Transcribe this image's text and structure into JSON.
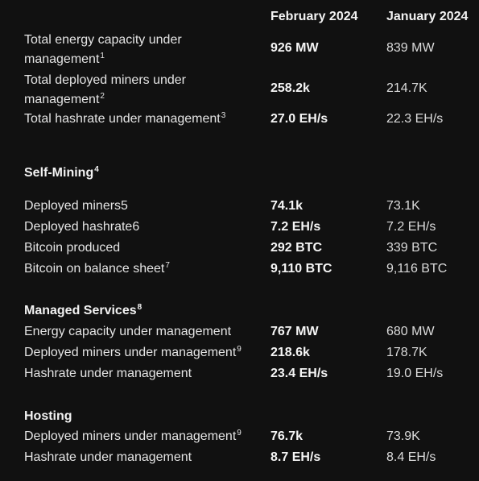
{
  "columns": {
    "feb": "February 2024",
    "jan": "January 2024"
  },
  "summary": [
    {
      "label": "Total energy capacity under management",
      "sup": "1",
      "feb": "926 MW",
      "jan": "839 MW"
    },
    {
      "label": "Total deployed miners under management",
      "sup": "2",
      "feb": "258.2k",
      "jan": "214.7K"
    },
    {
      "label": "Total hashrate under management",
      "sup": "3",
      "feb": "27.0 EH/s",
      "jan": "22.3 EH/s"
    }
  ],
  "self_mining": {
    "title": "Self-Mining",
    "sup": "4",
    "rows": [
      {
        "label": "Deployed miners5",
        "sup": "",
        "feb": "74.1k",
        "jan": "73.1K"
      },
      {
        "label": "Deployed hashrate6",
        "sup": "",
        "feb": "7.2 EH/s",
        "jan": "7.2 EH/s"
      },
      {
        "label": "Bitcoin produced",
        "sup": "",
        "feb": "292 BTC",
        "jan": "339 BTC"
      },
      {
        "label": "Bitcoin on balance sheet",
        "sup": "7",
        "feb": "9,110 BTC",
        "jan": "9,116 BTC"
      }
    ]
  },
  "managed_services": {
    "title": "Managed Services",
    "sup": "8",
    "rows": [
      {
        "label": "Energy capacity under management",
        "sup": "",
        "feb": "767 MW",
        "jan": "680 MW"
      },
      {
        "label": "Deployed miners under management",
        "sup": "9",
        "feb": "218.6k",
        "jan": "178.7K"
      },
      {
        "label": "Hashrate under management",
        "sup": "",
        "feb": "23.4 EH/s",
        "jan": "19.0 EH/s"
      }
    ]
  },
  "hosting": {
    "title": "Hosting",
    "sup": "",
    "rows": [
      {
        "label": "Deployed miners under management",
        "sup": "9",
        "feb": "76.7k",
        "jan": "73.9K"
      },
      {
        "label": "Hashrate under management",
        "sup": "",
        "feb": "8.7 EH/s",
        "jan": "8.4 EH/s"
      }
    ]
  }
}
